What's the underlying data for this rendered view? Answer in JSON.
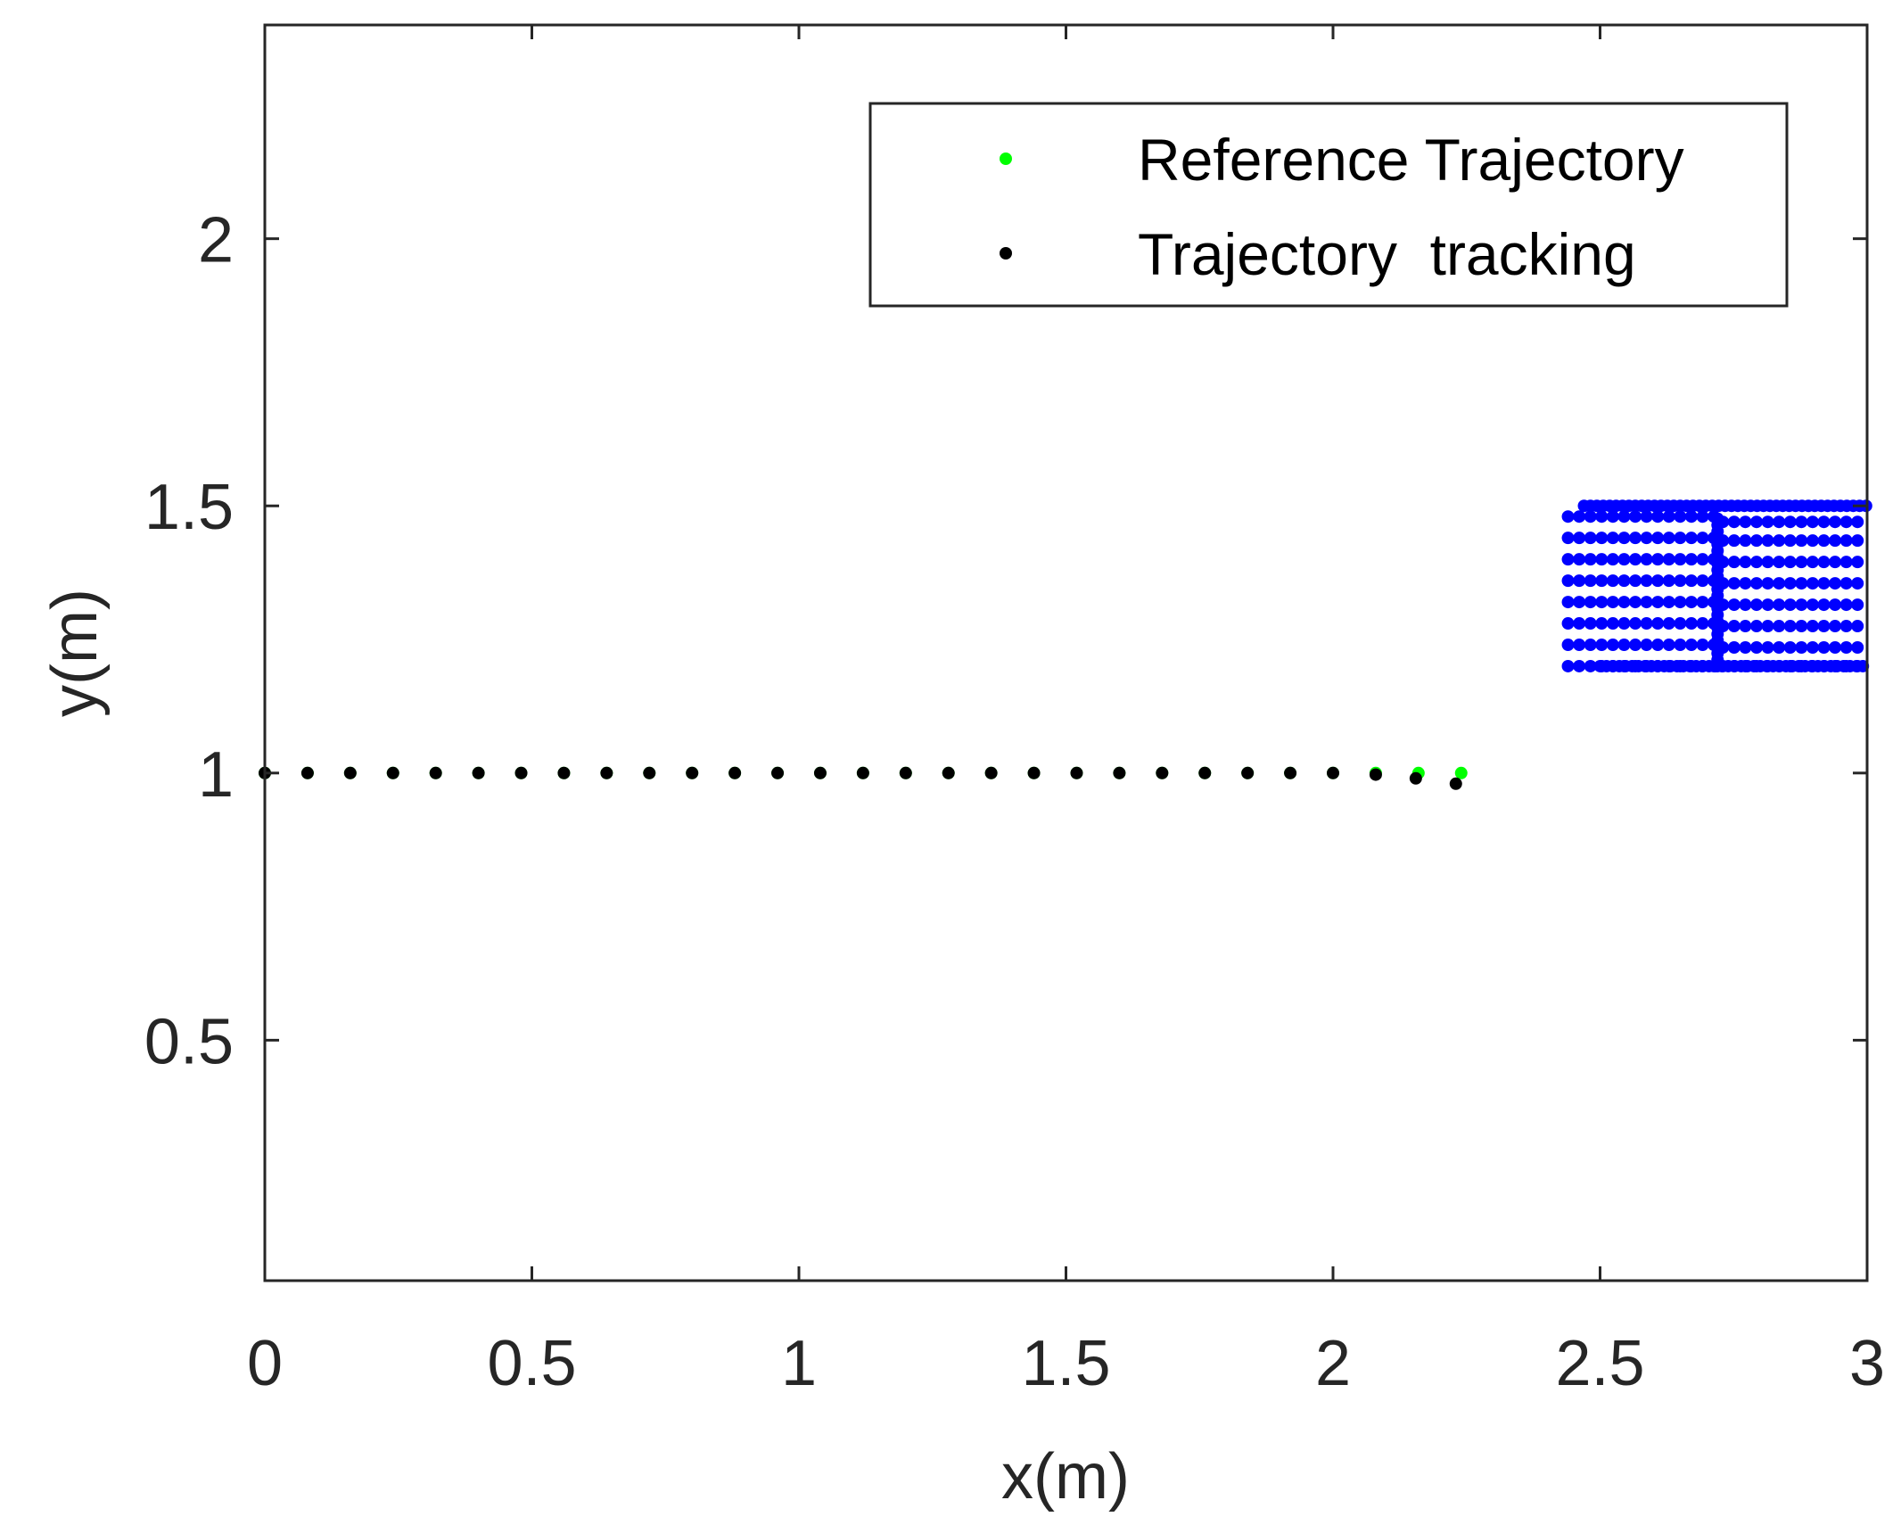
{
  "chart_data": {
    "type": "scatter",
    "title": "",
    "xlabel": "x(m)",
    "ylabel": "y(m)",
    "xlim": [
      0,
      3
    ],
    "ylim": [
      0.05,
      2.4
    ],
    "xticks": [
      0,
      0.5,
      1,
      1.5,
      2,
      2.5,
      3
    ],
    "xtick_labels": [
      "0",
      "0.5",
      "1",
      "1.5",
      "2",
      "2.5",
      "3"
    ],
    "yticks": [
      0.5,
      1,
      1.5,
      2
    ],
    "ytick_labels": [
      "0.5",
      "1",
      "1.5",
      "2"
    ],
    "grid": false,
    "legend_position": "top-right",
    "series": [
      {
        "name": "Reference Trajectory",
        "color": "#00ff00",
        "x": [
          0,
          0.08,
          0.16,
          0.24,
          0.32,
          0.4,
          0.48,
          0.56,
          0.64,
          0.72,
          0.8,
          0.88,
          0.96,
          1.04,
          1.12,
          1.2,
          1.28,
          1.36,
          1.44,
          1.52,
          1.6,
          1.68,
          1.76,
          1.84,
          1.92,
          2.0,
          2.08,
          2.16,
          2.24
        ],
        "y": [
          1,
          1,
          1,
          1,
          1,
          1,
          1,
          1,
          1,
          1,
          1,
          1,
          1,
          1,
          1,
          1,
          1,
          1,
          1,
          1,
          1,
          1,
          1,
          1,
          1,
          1,
          1,
          1,
          1
        ]
      },
      {
        "name": "Trajectory  tracking",
        "color": "#000000",
        "x": [
          0,
          0.08,
          0.16,
          0.24,
          0.32,
          0.4,
          0.48,
          0.56,
          0.64,
          0.72,
          0.8,
          0.88,
          0.96,
          1.04,
          1.12,
          1.2,
          1.28,
          1.36,
          1.44,
          1.52,
          1.6,
          1.68,
          1.76,
          1.84,
          1.92,
          2.0,
          2.08,
          2.155,
          2.23
        ],
        "y": [
          1,
          1,
          1,
          1,
          1,
          1,
          1,
          1,
          1,
          1,
          1,
          1,
          1,
          1,
          1,
          1,
          1,
          1,
          1,
          1,
          1,
          1,
          1,
          1,
          1,
          1,
          0.997,
          0.99,
          0.98
        ]
      }
    ],
    "obstacle": {
      "color": "#0000ff",
      "x_range": [
        2.44,
        3.0
      ],
      "y_range": [
        1.2,
        1.5
      ],
      "split_x": 2.72,
      "left_rows": [
        1.48,
        1.44,
        1.4,
        1.36,
        1.32,
        1.28,
        1.24,
        1.2
      ],
      "right_rows": [
        1.47,
        1.435,
        1.395,
        1.355,
        1.315,
        1.275,
        1.235,
        1.2
      ],
      "top_y": 1.5,
      "left_step": 0.021,
      "right_step": 0.021
    }
  }
}
